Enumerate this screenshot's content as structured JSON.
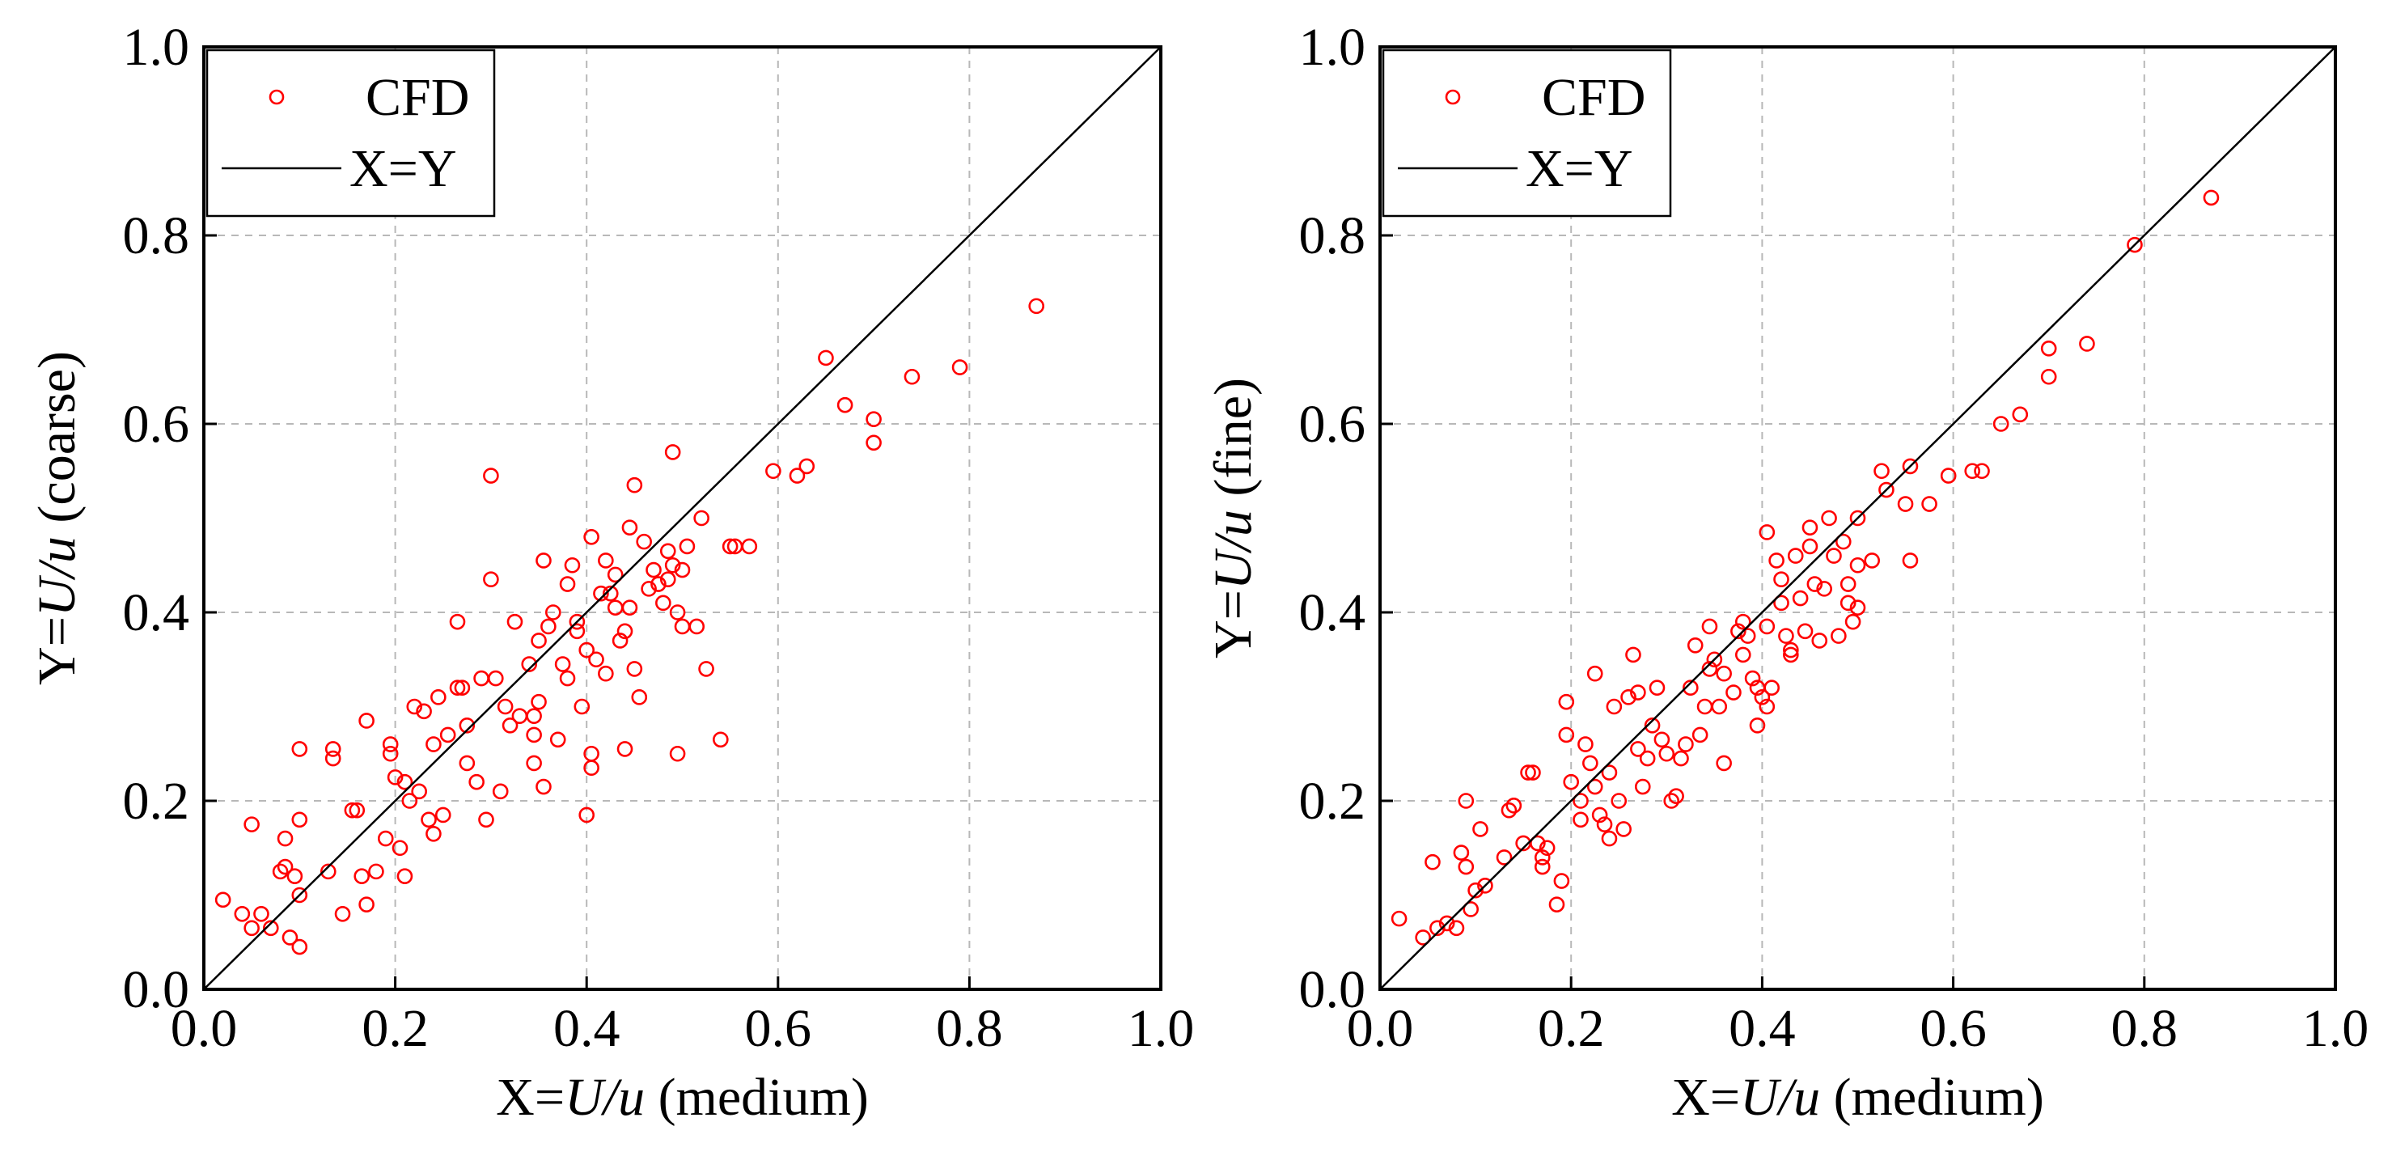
{
  "colors": {
    "cfd": "#ff0000",
    "line": "#000000",
    "grid": "#b8b8b8"
  },
  "chart_data": [
    {
      "type": "scatter",
      "xlabel_prefix": "X=",
      "xlabel_var": "U/u",
      "xlabel_suffix": " (medium)",
      "ylabel_prefix": "Y=",
      "ylabel_var": "U/u",
      "ylabel_suffix": " (coarse)",
      "xlim": [
        0.0,
        1.0
      ],
      "ylim": [
        0.0,
        1.0
      ],
      "x_ticks": [
        "0.0",
        "0.2",
        "0.4",
        "0.6",
        "0.8",
        "1.0"
      ],
      "y_ticks": [
        "0.0",
        "0.2",
        "0.4",
        "0.6",
        "0.8",
        "1.0"
      ],
      "grid": true,
      "legend_position": "top-left",
      "legend": [
        {
          "label": "CFD",
          "kind": "marker"
        },
        {
          "label": "X=Y",
          "kind": "line"
        }
      ],
      "series": [
        {
          "name": "CFD",
          "marker": "open-circle",
          "points": [
            [
              0.02,
              0.095
            ],
            [
              0.04,
              0.08
            ],
            [
              0.05,
              0.065
            ],
            [
              0.06,
              0.08
            ],
            [
              0.07,
              0.065
            ],
            [
              0.05,
              0.175
            ],
            [
              0.08,
              0.125
            ],
            [
              0.085,
              0.13
            ],
            [
              0.09,
              0.055
            ],
            [
              0.095,
              0.12
            ],
            [
              0.1,
              0.1
            ],
            [
              0.1,
              0.045
            ],
            [
              0.085,
              0.16
            ],
            [
              0.1,
              0.18
            ],
            [
              0.1,
              0.255
            ],
            [
              0.13,
              0.125
            ],
            [
              0.135,
              0.245
            ],
            [
              0.135,
              0.255
            ],
            [
              0.145,
              0.08
            ],
            [
              0.155,
              0.19
            ],
            [
              0.16,
              0.19
            ],
            [
              0.165,
              0.12
            ],
            [
              0.17,
              0.09
            ],
            [
              0.17,
              0.285
            ],
            [
              0.18,
              0.125
            ],
            [
              0.19,
              0.16
            ],
            [
              0.195,
              0.25
            ],
            [
              0.195,
              0.26
            ],
            [
              0.2,
              0.225
            ],
            [
              0.205,
              0.15
            ],
            [
              0.21,
              0.12
            ],
            [
              0.21,
              0.22
            ],
            [
              0.215,
              0.2
            ],
            [
              0.22,
              0.3
            ],
            [
              0.225,
              0.21
            ],
            [
              0.23,
              0.295
            ],
            [
              0.235,
              0.18
            ],
            [
              0.24,
              0.165
            ],
            [
              0.24,
              0.26
            ],
            [
              0.245,
              0.31
            ],
            [
              0.25,
              0.185
            ],
            [
              0.255,
              0.27
            ],
            [
              0.265,
              0.32
            ],
            [
              0.265,
              0.39
            ],
            [
              0.27,
              0.32
            ],
            [
              0.275,
              0.24
            ],
            [
              0.275,
              0.28
            ],
            [
              0.285,
              0.22
            ],
            [
              0.29,
              0.33
            ],
            [
              0.295,
              0.18
            ],
            [
              0.3,
              0.545
            ],
            [
              0.3,
              0.435
            ],
            [
              0.305,
              0.33
            ],
            [
              0.31,
              0.21
            ],
            [
              0.315,
              0.3
            ],
            [
              0.32,
              0.28
            ],
            [
              0.325,
              0.39
            ],
            [
              0.33,
              0.29
            ],
            [
              0.34,
              0.345
            ],
            [
              0.345,
              0.24
            ],
            [
              0.345,
              0.27
            ],
            [
              0.345,
              0.29
            ],
            [
              0.35,
              0.305
            ],
            [
              0.35,
              0.37
            ],
            [
              0.355,
              0.455
            ],
            [
              0.355,
              0.215
            ],
            [
              0.36,
              0.385
            ],
            [
              0.365,
              0.4
            ],
            [
              0.37,
              0.265
            ],
            [
              0.375,
              0.345
            ],
            [
              0.38,
              0.33
            ],
            [
              0.38,
              0.43
            ],
            [
              0.385,
              0.45
            ],
            [
              0.39,
              0.39
            ],
            [
              0.39,
              0.38
            ],
            [
              0.395,
              0.3
            ],
            [
              0.4,
              0.185
            ],
            [
              0.4,
              0.36
            ],
            [
              0.405,
              0.235
            ],
            [
              0.405,
              0.25
            ],
            [
              0.405,
              0.48
            ],
            [
              0.41,
              0.35
            ],
            [
              0.415,
              0.42
            ],
            [
              0.42,
              0.335
            ],
            [
              0.42,
              0.455
            ],
            [
              0.425,
              0.42
            ],
            [
              0.43,
              0.44
            ],
            [
              0.43,
              0.405
            ],
            [
              0.435,
              0.37
            ],
            [
              0.44,
              0.255
            ],
            [
              0.44,
              0.38
            ],
            [
              0.445,
              0.49
            ],
            [
              0.445,
              0.405
            ],
            [
              0.45,
              0.535
            ],
            [
              0.45,
              0.34
            ],
            [
              0.455,
              0.31
            ],
            [
              0.46,
              0.475
            ],
            [
              0.465,
              0.425
            ],
            [
              0.47,
              0.445
            ],
            [
              0.475,
              0.43
            ],
            [
              0.48,
              0.41
            ],
            [
              0.485,
              0.465
            ],
            [
              0.485,
              0.435
            ],
            [
              0.49,
              0.57
            ],
            [
              0.49,
              0.45
            ],
            [
              0.495,
              0.4
            ],
            [
              0.495,
              0.25
            ],
            [
              0.5,
              0.385
            ],
            [
              0.5,
              0.445
            ],
            [
              0.505,
              0.47
            ],
            [
              0.515,
              0.385
            ],
            [
              0.52,
              0.5
            ],
            [
              0.525,
              0.34
            ],
            [
              0.54,
              0.265
            ],
            [
              0.55,
              0.47
            ],
            [
              0.555,
              0.47
            ],
            [
              0.57,
              0.47
            ],
            [
              0.595,
              0.55
            ],
            [
              0.62,
              0.545
            ],
            [
              0.63,
              0.555
            ],
            [
              0.65,
              0.67
            ],
            [
              0.67,
              0.62
            ],
            [
              0.7,
              0.605
            ],
            [
              0.7,
              0.58
            ],
            [
              0.74,
              0.65
            ],
            [
              0.79,
              0.66
            ],
            [
              0.87,
              0.725
            ]
          ]
        },
        {
          "name": "X=Y",
          "from": [
            0,
            0
          ],
          "to": [
            1,
            1
          ]
        }
      ]
    },
    {
      "type": "scatter",
      "xlabel_prefix": "X=",
      "xlabel_var": "U/u",
      "xlabel_suffix": " (medium)",
      "ylabel_prefix": "Y=",
      "ylabel_var": "U/u",
      "ylabel_suffix": " (fine)",
      "xlim": [
        0.0,
        1.0
      ],
      "ylim": [
        0.0,
        1.0
      ],
      "x_ticks": [
        "0.0",
        "0.2",
        "0.4",
        "0.6",
        "0.8",
        "1.0"
      ],
      "y_ticks": [
        "0.0",
        "0.2",
        "0.4",
        "0.6",
        "0.8",
        "1.0"
      ],
      "grid": true,
      "legend_position": "top-left",
      "legend": [
        {
          "label": "CFD",
          "kind": "marker"
        },
        {
          "label": "X=Y",
          "kind": "line"
        }
      ],
      "series": [
        {
          "name": "CFD",
          "marker": "open-circle",
          "points": [
            [
              0.02,
              0.075
            ],
            [
              0.045,
              0.055
            ],
            [
              0.055,
              0.135
            ],
            [
              0.06,
              0.065
            ],
            [
              0.07,
              0.07
            ],
            [
              0.08,
              0.065
            ],
            [
              0.085,
              0.145
            ],
            [
              0.09,
              0.2
            ],
            [
              0.09,
              0.13
            ],
            [
              0.095,
              0.085
            ],
            [
              0.1,
              0.105
            ],
            [
              0.105,
              0.17
            ],
            [
              0.11,
              0.11
            ],
            [
              0.13,
              0.14
            ],
            [
              0.135,
              0.19
            ],
            [
              0.14,
              0.195
            ],
            [
              0.15,
              0.155
            ],
            [
              0.155,
              0.23
            ],
            [
              0.16,
              0.23
            ],
            [
              0.165,
              0.155
            ],
            [
              0.17,
              0.14
            ],
            [
              0.17,
              0.13
            ],
            [
              0.175,
              0.15
            ],
            [
              0.185,
              0.09
            ],
            [
              0.19,
              0.115
            ],
            [
              0.195,
              0.27
            ],
            [
              0.195,
              0.305
            ],
            [
              0.2,
              0.22
            ],
            [
              0.21,
              0.18
            ],
            [
              0.21,
              0.2
            ],
            [
              0.215,
              0.26
            ],
            [
              0.22,
              0.24
            ],
            [
              0.225,
              0.215
            ],
            [
              0.225,
              0.335
            ],
            [
              0.23,
              0.185
            ],
            [
              0.235,
              0.175
            ],
            [
              0.24,
              0.16
            ],
            [
              0.24,
              0.23
            ],
            [
              0.245,
              0.3
            ],
            [
              0.25,
              0.2
            ],
            [
              0.255,
              0.17
            ],
            [
              0.26,
              0.31
            ],
            [
              0.265,
              0.355
            ],
            [
              0.27,
              0.315
            ],
            [
              0.27,
              0.255
            ],
            [
              0.275,
              0.215
            ],
            [
              0.28,
              0.245
            ],
            [
              0.285,
              0.28
            ],
            [
              0.29,
              0.32
            ],
            [
              0.295,
              0.265
            ],
            [
              0.3,
              0.25
            ],
            [
              0.305,
              0.2
            ],
            [
              0.31,
              0.205
            ],
            [
              0.315,
              0.245
            ],
            [
              0.32,
              0.26
            ],
            [
              0.325,
              0.32
            ],
            [
              0.33,
              0.365
            ],
            [
              0.335,
              0.27
            ],
            [
              0.34,
              0.3
            ],
            [
              0.345,
              0.34
            ],
            [
              0.345,
              0.385
            ],
            [
              0.35,
              0.35
            ],
            [
              0.355,
              0.3
            ],
            [
              0.36,
              0.335
            ],
            [
              0.36,
              0.24
            ],
            [
              0.37,
              0.315
            ],
            [
              0.375,
              0.38
            ],
            [
              0.38,
              0.39
            ],
            [
              0.38,
              0.355
            ],
            [
              0.385,
              0.375
            ],
            [
              0.39,
              0.33
            ],
            [
              0.395,
              0.28
            ],
            [
              0.395,
              0.32
            ],
            [
              0.4,
              0.31
            ],
            [
              0.405,
              0.3
            ],
            [
              0.405,
              0.385
            ],
            [
              0.405,
              0.485
            ],
            [
              0.41,
              0.32
            ],
            [
              0.415,
              0.455
            ],
            [
              0.42,
              0.435
            ],
            [
              0.42,
              0.41
            ],
            [
              0.425,
              0.375
            ],
            [
              0.43,
              0.36
            ],
            [
              0.43,
              0.355
            ],
            [
              0.435,
              0.46
            ],
            [
              0.44,
              0.415
            ],
            [
              0.445,
              0.38
            ],
            [
              0.45,
              0.47
            ],
            [
              0.45,
              0.49
            ],
            [
              0.455,
              0.43
            ],
            [
              0.46,
              0.37
            ],
            [
              0.465,
              0.425
            ],
            [
              0.47,
              0.5
            ],
            [
              0.475,
              0.46
            ],
            [
              0.48,
              0.375
            ],
            [
              0.485,
              0.475
            ],
            [
              0.49,
              0.43
            ],
            [
              0.49,
              0.41
            ],
            [
              0.495,
              0.39
            ],
            [
              0.5,
              0.45
            ],
            [
              0.5,
              0.5
            ],
            [
              0.5,
              0.405
            ],
            [
              0.515,
              0.455
            ],
            [
              0.525,
              0.55
            ],
            [
              0.53,
              0.53
            ],
            [
              0.55,
              0.515
            ],
            [
              0.555,
              0.455
            ],
            [
              0.555,
              0.555
            ],
            [
              0.575,
              0.515
            ],
            [
              0.595,
              0.545
            ],
            [
              0.62,
              0.55
            ],
            [
              0.63,
              0.55
            ],
            [
              0.65,
              0.6
            ],
            [
              0.67,
              0.61
            ],
            [
              0.7,
              0.68
            ],
            [
              0.7,
              0.65
            ],
            [
              0.74,
              0.685
            ],
            [
              0.79,
              0.79
            ],
            [
              0.87,
              0.84
            ]
          ]
        },
        {
          "name": "X=Y",
          "from": [
            0,
            0
          ],
          "to": [
            1,
            1
          ]
        }
      ]
    }
  ]
}
